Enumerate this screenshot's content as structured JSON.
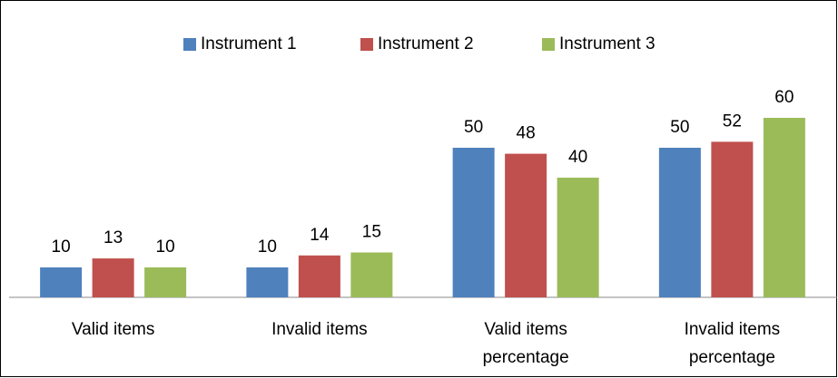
{
  "chart_data": {
    "type": "bar",
    "categories": [
      "Valid items",
      "Invalid items",
      "Valid items percentage",
      "Invalid items percentage"
    ],
    "series": [
      {
        "name": "Instrument 1",
        "color": "#4f81bd",
        "values": [
          10,
          10,
          50,
          50
        ]
      },
      {
        "name": "Instrument 2",
        "color": "#c0504d",
        "values": [
          13,
          14,
          48,
          52
        ]
      },
      {
        "name": "Instrument 3",
        "color": "#9bbb59",
        "values": [
          10,
          15,
          40,
          60
        ]
      }
    ],
    "ylim": [
      0,
      70
    ],
    "legend": "top"
  }
}
